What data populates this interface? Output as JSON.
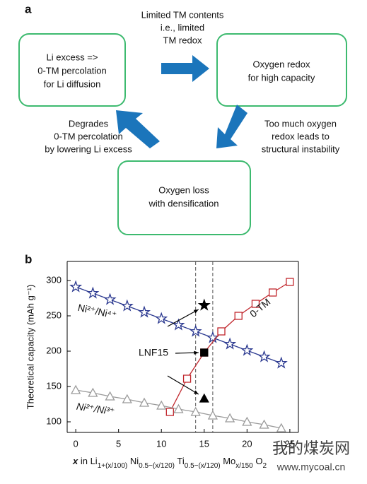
{
  "panel_a": {
    "label": "a",
    "boxes": [
      [
        "Li excess =>",
        "0-TM percolation",
        "for Li diffusion"
      ],
      [
        "Oxygen redox",
        "for high capacity"
      ],
      [
        "Oxygen loss",
        "with densification"
      ]
    ],
    "arrow_labels": [
      [
        "Limited TM contents",
        "i.e., limited",
        "TM redox"
      ],
      [
        "Too much oxygen",
        "redox leads to",
        "structural instability"
      ],
      [
        "Degrades",
        "0-TM percolation",
        "by lowering Li excess"
      ]
    ]
  },
  "chart_data": {
    "type": "line",
    "label": "b",
    "ylabel": "Theoretical capacity (mAh g⁻¹)",
    "xlabel_parts": [
      "x",
      " in Li",
      "1+(x/100)",
      " Ni",
      "0.5−(x/120)",
      " Ti",
      "0.5−(x/120)",
      " Mo",
      "x/150",
      " O",
      "2"
    ],
    "xlim": [
      -1,
      26
    ],
    "ylim": [
      85,
      327
    ],
    "xticks": [
      0,
      5,
      10,
      15,
      20,
      25
    ],
    "yticks": [
      100,
      150,
      200,
      250,
      300
    ],
    "series": [
      {
        "name": "Ni²⁺/Ni⁴⁺",
        "color": "#2b3990",
        "marker": "star",
        "x": [
          0,
          2,
          4,
          6,
          8,
          10,
          12,
          14,
          16,
          18,
          20,
          22,
          24
        ],
        "values": [
          291,
          282,
          273,
          264,
          255,
          246,
          237,
          228,
          219,
          210,
          201,
          192,
          183
        ]
      },
      {
        "name": "0-TM",
        "color": "#c1272d",
        "marker": "square",
        "x": [
          11,
          13,
          15,
          17,
          19,
          21,
          23,
          25
        ],
        "values": [
          114,
          161,
          198,
          228,
          250,
          267,
          283,
          298
        ]
      },
      {
        "name": "Ni²⁺/Ni³⁺",
        "color": "#9a9a9a",
        "marker": "triangle",
        "x": [
          0,
          2,
          4,
          6,
          8,
          10,
          12,
          14,
          16,
          18,
          20,
          22,
          24
        ],
        "values": [
          145,
          141,
          136,
          132,
          127,
          123,
          118,
          114,
          109,
          105,
          100,
          96,
          91
        ]
      }
    ],
    "highlight": {
      "color": "#000000",
      "x": [
        15,
        15,
        15
      ],
      "values": [
        265,
        198,
        133
      ],
      "markers": [
        "star",
        "square",
        "triangle"
      ],
      "label": "LNF15"
    },
    "vlines": [
      14,
      16
    ]
  },
  "watermark": [
    "我的煤炭网",
    "www.mycoal.cn"
  ]
}
